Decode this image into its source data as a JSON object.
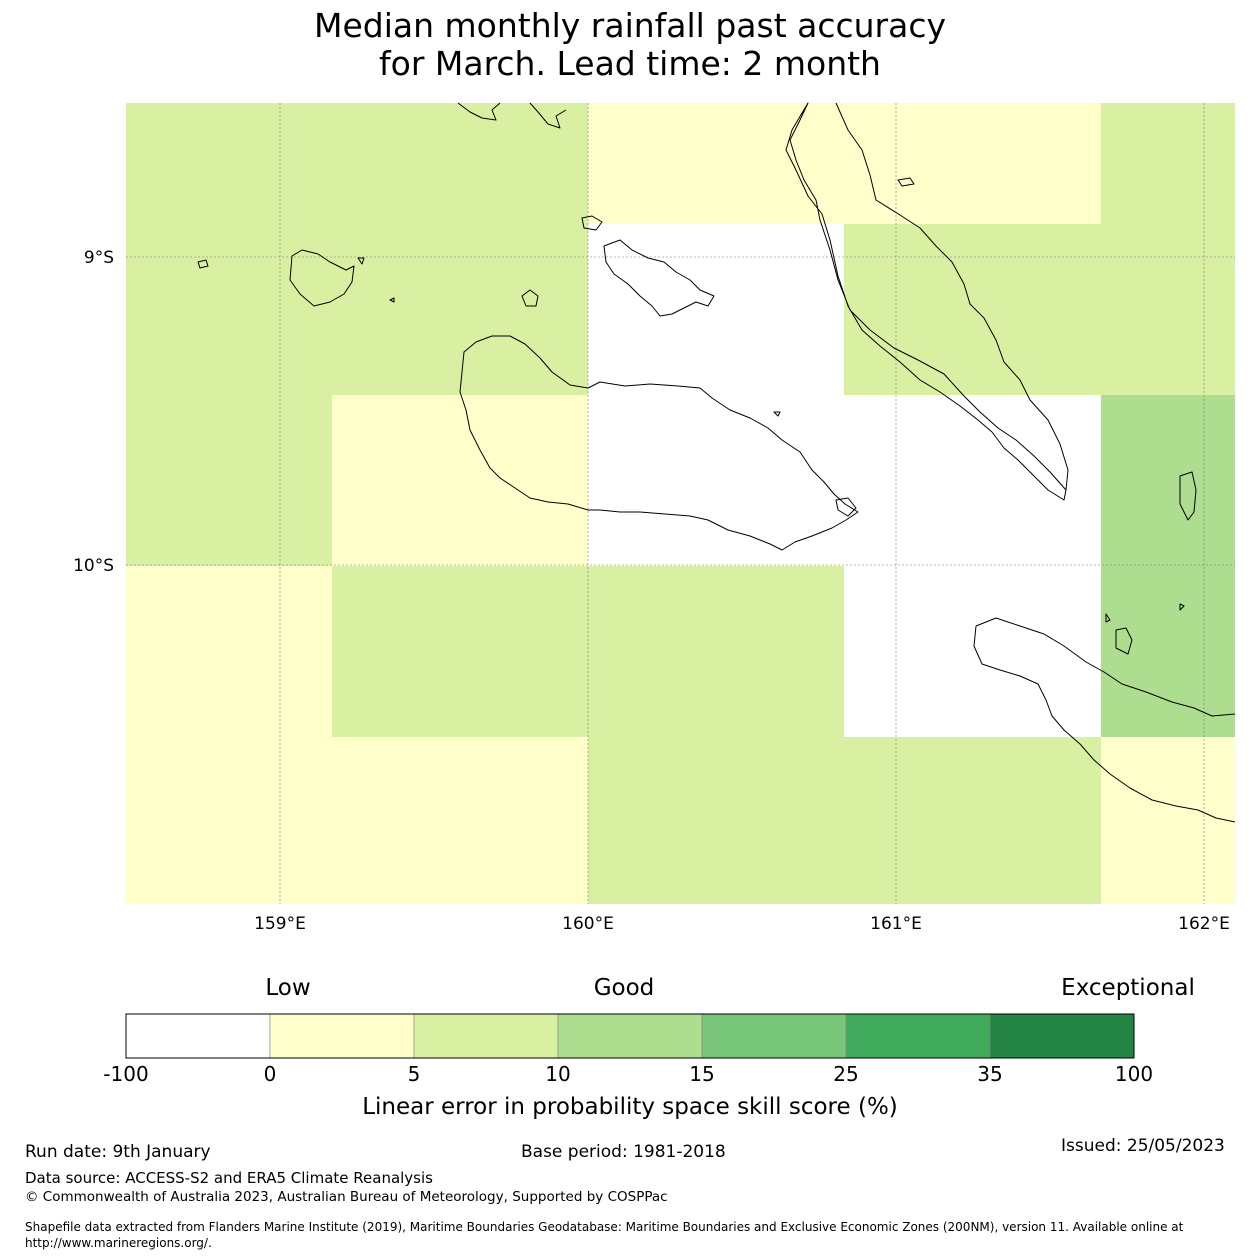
{
  "title": {
    "line1": "Median monthly rainfall past accuracy",
    "line2": "for March. Lead time: 2 month"
  },
  "map": {
    "lat_labels": [
      "9°S",
      "10°S"
    ],
    "lon_labels": [
      "159°E",
      "160°E",
      "161°E",
      "162°E"
    ],
    "lon_range": [
      158.5,
      162.1
    ],
    "lat_range": [
      -8.5,
      -11.1
    ],
    "grid_lons": [
      159,
      160,
      161,
      162
    ],
    "grid_lats": [
      -9,
      -10
    ],
    "cell_lon_edges": [
      158.5,
      159.17,
      160.0,
      160.83,
      161.67,
      162.1
    ],
    "cell_lat_edges": [
      -8.5,
      -8.89,
      -9.44,
      -10.0,
      -10.56,
      -11.1
    ],
    "cell_classes": [
      [
        2,
        2,
        1,
        1,
        2
      ],
      [
        2,
        2,
        0,
        2,
        2
      ],
      [
        2,
        1,
        0,
        0,
        3
      ],
      [
        1,
        2,
        2,
        0,
        3
      ],
      [
        1,
        1,
        2,
        2,
        1
      ]
    ]
  },
  "colorbar": {
    "qualitative": [
      "Low",
      "Good",
      "Exceptional"
    ],
    "ticks": [
      "-100",
      "0",
      "5",
      "10",
      "15",
      "25",
      "35",
      "100"
    ],
    "colors": [
      "#ffffff",
      "#ffffcc",
      "#d9f0a3",
      "#addd8e",
      "#78c679",
      "#41ab5d",
      "#238443"
    ],
    "xlabel": "Linear error in probability space skill score (%)"
  },
  "footer": {
    "run_date": "Run date: 9th January",
    "base_period": "Base period: 1981-2018",
    "issued": "Issued: 25/05/2023",
    "data_source": "Data source: ACCESS-S2 and ERA5 Climate Reanalysis",
    "copyright": "© Commonwealth of Australia 2023, Australian Bureau of Meteorology, Supported by COSPPac",
    "shapefile_line1": "Shapefile data extracted from Flanders Marine Institute (2019), Maritime Boundaries Geodatabase: Maritime Boundaries and Exclusive Economic Zones (200NM), version 11. Available online at",
    "shapefile_line2": "http://www.marineregions.org/."
  }
}
